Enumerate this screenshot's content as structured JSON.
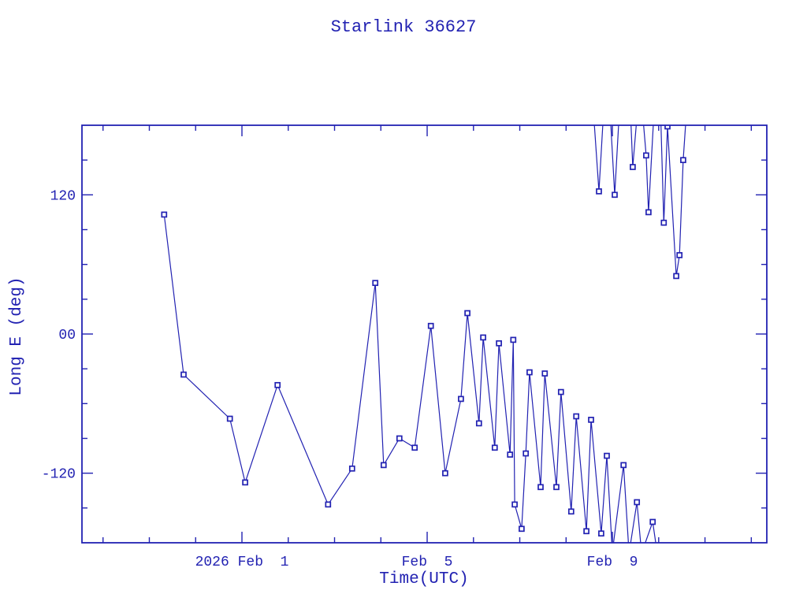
{
  "title": "Starlink 36627",
  "axes": {
    "x_label": "Time(UTC)",
    "y_label": "Long E (deg)"
  },
  "colors": {
    "plot": "#2222b2",
    "background": "#ffffff"
  },
  "chart_data": {
    "type": "line",
    "title": "Starlink 36627",
    "xlabel": "Time(UTC)",
    "ylabel": "Long E (deg)",
    "x_unit": "days since 2026-01-28 00:00 UTC",
    "xlim": [
      0.545,
      15.335
    ],
    "ylim": [
      -180,
      180
    ],
    "grid": false,
    "legend": "none",
    "marker": "open-square",
    "x_major_ticks": [
      {
        "day": 4,
        "label": "2026 Feb  1"
      },
      {
        "day": 8,
        "label": "Feb  5"
      },
      {
        "day": 12,
        "label": "Feb  9"
      }
    ],
    "x_minor_tick_step_days": 1,
    "y_major_ticks": [
      {
        "value": 120,
        "label": "120"
      },
      {
        "value": 0,
        "label": "00"
      },
      {
        "value": -120,
        "label": "-120"
      }
    ],
    "y_minor_tick_step": 30,
    "series": [
      {
        "name": "longitude-east",
        "points": [
          [
            2.32,
            103
          ],
          [
            2.74,
            -35
          ],
          [
            3.74,
            -73
          ],
          [
            4.07,
            -128
          ],
          [
            4.77,
            -44
          ],
          [
            5.86,
            -147
          ],
          [
            6.38,
            -116
          ],
          [
            6.88,
            44
          ],
          [
            7.06,
            -113
          ],
          [
            7.4,
            -90
          ],
          [
            7.73,
            -98
          ],
          [
            8.08,
            7
          ],
          [
            8.39,
            -120
          ],
          [
            8.73,
            -56
          ],
          [
            8.87,
            18
          ],
          [
            9.12,
            -77
          ],
          [
            9.21,
            -3
          ],
          [
            9.46,
            -98
          ],
          [
            9.55,
            -8
          ],
          [
            9.79,
            -104
          ],
          [
            9.86,
            -5
          ],
          [
            9.89,
            -147
          ],
          [
            10.04,
            -168
          ],
          [
            10.13,
            -103
          ],
          [
            10.21,
            -33
          ],
          [
            10.45,
            -132
          ],
          [
            10.54,
            -34
          ],
          [
            10.79,
            -132
          ],
          [
            10.89,
            -50
          ],
          [
            11.11,
            -153
          ],
          [
            11.22,
            -71
          ],
          [
            11.44,
            -170
          ],
          [
            11.54,
            -74
          ],
          [
            11.76,
            -172
          ],
          [
            11.88,
            -105
          ],
          [
            12.0,
            -188
          ],
          [
            12.24,
            -113
          ],
          [
            12.36,
            -189
          ],
          [
            12.53,
            -145
          ],
          [
            12.63,
            -189
          ],
          [
            12.87,
            -162
          ],
          [
            12.97,
            -189
          ]
        ]
      },
      {
        "name": "longitude-east-wrapped",
        "points": [
          [
            11.59,
            192
          ],
          [
            11.71,
            123
          ],
          [
            11.81,
            192
          ],
          [
            11.95,
            192
          ],
          [
            12.05,
            120
          ],
          [
            12.15,
            192
          ],
          [
            12.39,
            192
          ],
          [
            12.44,
            144
          ],
          [
            12.54,
            192
          ],
          [
            12.65,
            192
          ],
          [
            12.73,
            154
          ],
          [
            12.78,
            105
          ],
          [
            12.9,
            192
          ],
          [
            13.04,
            192
          ],
          [
            13.11,
            96
          ],
          [
            13.19,
            179
          ],
          [
            13.38,
            50
          ],
          [
            13.45,
            68
          ],
          [
            13.53,
            150
          ],
          [
            13.6,
            192
          ]
        ]
      }
    ]
  }
}
